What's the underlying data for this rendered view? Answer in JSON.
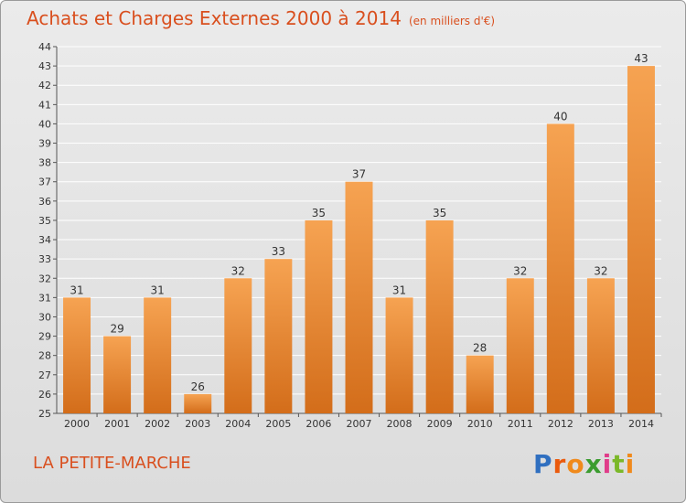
{
  "header": {
    "title": "Achats et Charges Externes 2000 à 2014",
    "subtitle": "(en milliers d'€)"
  },
  "commune": "LA PETITE-MARCHE",
  "logo": {
    "text": "Proxiti",
    "letter_colors": [
      "#2f6fc0",
      "#ea5a0d",
      "#f08a1c",
      "#3b9c2f",
      "#e03c8a",
      "#7bb829",
      "#f08a1c"
    ]
  },
  "colors": {
    "title": "#d94f1e",
    "bar_light": "#f6a352",
    "bar_dark": "#d36d1a",
    "grid": "#ffffff"
  },
  "chart_data": {
    "type": "bar",
    "title": "Achats et Charges Externes 2000 à 2014",
    "subtitle": "(en milliers d'€)",
    "categories": [
      "2000",
      "2001",
      "2002",
      "2003",
      "2004",
      "2005",
      "2006",
      "2007",
      "2008",
      "2009",
      "2010",
      "2011",
      "2012",
      "2013",
      "2014"
    ],
    "values": [
      31,
      29,
      31,
      26,
      32,
      33,
      35,
      37,
      31,
      35,
      28,
      32,
      40,
      32,
      43
    ],
    "ylim": [
      25,
      44
    ],
    "yticks": [
      25,
      26,
      27,
      28,
      29,
      30,
      31,
      32,
      33,
      34,
      35,
      36,
      37,
      38,
      39,
      40,
      41,
      42,
      43,
      44
    ],
    "grid": true,
    "data_labels": true
  }
}
